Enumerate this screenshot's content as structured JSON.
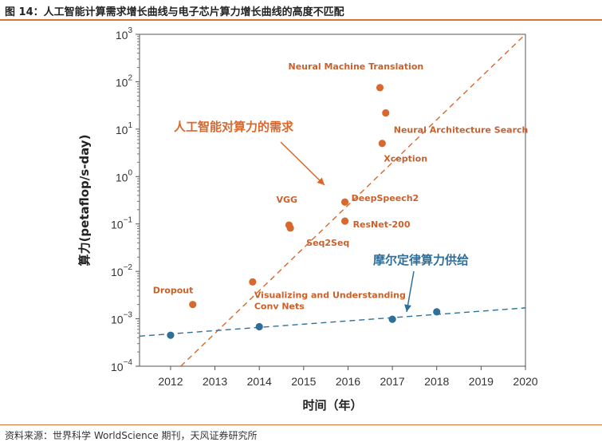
{
  "figure_title": "图 14：人工智能计算需求增长曲线与电子芯片算力增长曲线的高度不匹配",
  "source_note": "资料来源：世界科学 WorldScience 期刊，天风证券研究所",
  "colors": {
    "orange": "#d8692e",
    "blue": "#2e6f9a",
    "rule": "#d8762f"
  },
  "chart_data": {
    "type": "scatter",
    "title": "",
    "xlabel": "时间（年）",
    "ylabel": "算力(petaflop/s-day)",
    "y_scale": "log",
    "xlim": [
      2011.3,
      2020
    ],
    "ylim": [
      0.0001,
      1000
    ],
    "x_ticks": [
      2012,
      2013,
      2014,
      2015,
      2016,
      2017,
      2018,
      2019,
      2020
    ],
    "x_tick_labels": [
      "2012",
      "2013",
      "2014",
      "2015",
      "2016",
      "2017",
      "2018",
      "2019",
      "2020"
    ],
    "y_ticks": [
      0.0001,
      0.001,
      0.01,
      0.1,
      1,
      10,
      100,
      1000
    ],
    "y_tick_labels": [
      {
        "base": "10",
        "exp": "−4"
      },
      {
        "base": "10",
        "exp": "−3"
      },
      {
        "base": "10",
        "exp": "−2"
      },
      {
        "base": "10",
        "exp": "−1"
      },
      {
        "base": "10",
        "exp": "0"
      },
      {
        "base": "10",
        "exp": "1"
      },
      {
        "base": "10",
        "exp": "2"
      },
      {
        "base": "10",
        "exp": "3"
      }
    ],
    "grid": false,
    "series": [
      {
        "name": "人工智能对算力的需求",
        "color": "#d8692e",
        "points": [
          {
            "x": 2012.5,
            "y": 0.002,
            "label": "Dropout"
          },
          {
            "x": 2013.85,
            "y": 0.006,
            "label": "Visualizing and Understanding Conv Nets"
          },
          {
            "x": 2014.67,
            "y": 0.095,
            "label": "VGG"
          },
          {
            "x": 2014.7,
            "y": 0.082,
            "label": "Seq2Seq"
          },
          {
            "x": 2015.93,
            "y": 0.29,
            "label": "DeepSpeech2"
          },
          {
            "x": 2015.93,
            "y": 0.115,
            "label": "ResNet-200"
          },
          {
            "x": 2016.72,
            "y": 75,
            "label": "Neural Machine Translation"
          },
          {
            "x": 2016.85,
            "y": 22,
            "label": "Neural Architecture Search"
          },
          {
            "x": 2016.77,
            "y": 5,
            "label": "Xception"
          }
        ],
        "trend": {
          "x": [
            2012.23,
            2020
          ],
          "y": [
            0.0001,
            1000
          ]
        }
      },
      {
        "name": "摩尔定律算力供给",
        "color": "#2e6f9a",
        "points": [
          {
            "x": 2012,
            "y": 0.00045
          },
          {
            "x": 2014,
            "y": 0.00068
          },
          {
            "x": 2017,
            "y": 0.00098
          },
          {
            "x": 2018,
            "y": 0.0014
          }
        ],
        "trend": {
          "x": [
            2011.3,
            2020
          ],
          "y": [
            0.00043,
            0.0017
          ]
        }
      }
    ],
    "annotations": [
      {
        "text": "人工智能对算力的需求",
        "series": 0
      },
      {
        "text": "摩尔定律算力供给",
        "series": 1
      }
    ]
  }
}
